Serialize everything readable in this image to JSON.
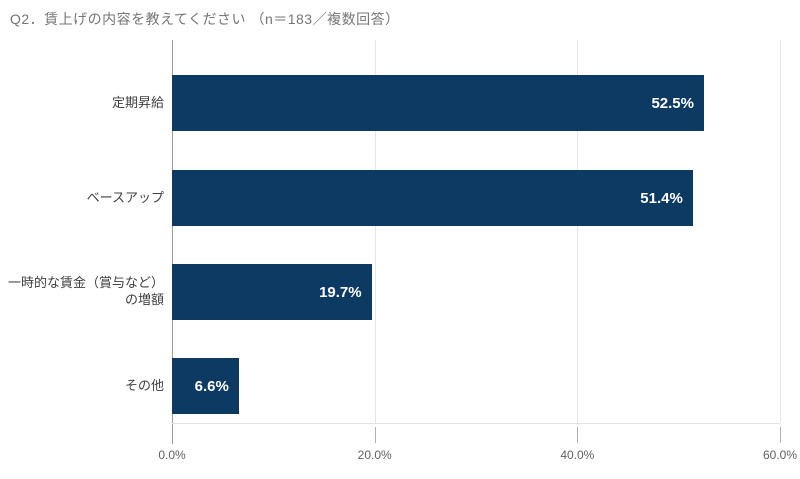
{
  "chart_data": {
    "type": "bar",
    "orientation": "horizontal",
    "title": "Q2．賃上げの内容を教えてください （n＝183／複数回答）",
    "sample_size_note": "n＝183／複数回答",
    "categories": [
      "定期昇給",
      "ベースアップ",
      "一時的な賃金（賞与など）の増額",
      "その他"
    ],
    "category_lines": [
      [
        "定期昇給"
      ],
      [
        "ベースアップ"
      ],
      [
        "一時的な賃金（賞与など）",
        "の増額"
      ],
      [
        "その他"
      ]
    ],
    "values": [
      52.5,
      51.4,
      19.7,
      6.6
    ],
    "value_labels": [
      "52.5%",
      "51.4%",
      "19.7%",
      "6.6%"
    ],
    "xlabel": "",
    "ylabel": "",
    "xlim": [
      0,
      60
    ],
    "x_tick_values": [
      0,
      20,
      40,
      60
    ],
    "x_tick_labels": [
      "0.0%",
      "20.0%",
      "40.0%",
      "60.0%"
    ],
    "grid": true,
    "legend": "none",
    "colors": {
      "bar": "#0d3a63",
      "title": "#757575",
      "category_label": "#404040",
      "value_label": "#ffffff",
      "tick_label": "#616161",
      "gridline": "#e6e6e6",
      "axis_line": "#9b9b9b",
      "background": "#ffffff"
    }
  }
}
